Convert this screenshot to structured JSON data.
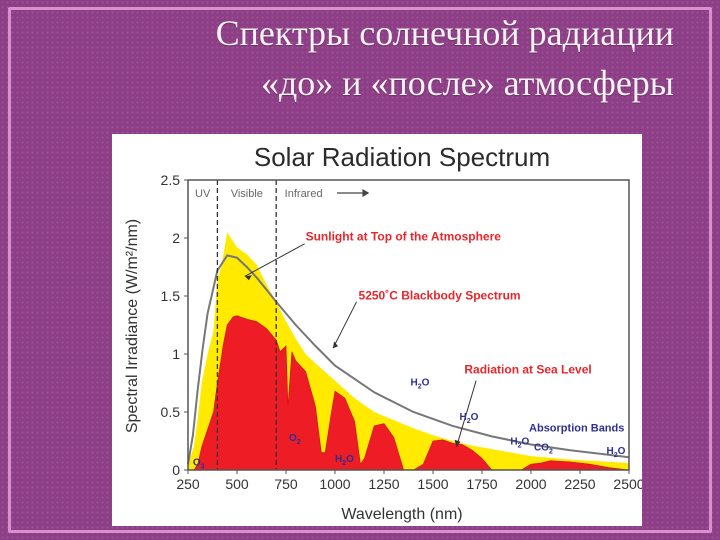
{
  "slide": {
    "title_line1": "Спектры солнечной радиации",
    "title_line2": "«до» и «после» атмосферы"
  },
  "colors": {
    "slide_background": "#8e3e86",
    "frame": "#d98fd0",
    "top_of_atmosphere": "#ffea00",
    "sea_level": "#ee1c25",
    "blackbody": "#777777",
    "annotation_red": "#e8262b",
    "absorption_blue": "#2e3192"
  },
  "chart_data": {
    "type": "area",
    "title": "Solar Radiation Spectrum",
    "xlabel": "Wavelength (nm)",
    "ylabel": "Spectral Irradiance (W/m²/nm)",
    "xlim": [
      250,
      2500
    ],
    "ylim": [
      0,
      2.5
    ],
    "xticks": [
      250,
      500,
      750,
      1000,
      1250,
      1500,
      1750,
      2000,
      2250,
      2500
    ],
    "yticks": [
      0,
      0.5,
      1,
      1.5,
      2,
      2.5
    ],
    "ytick_labels": [
      "0",
      "0.5",
      "1",
      "1.5",
      "2",
      "2.5"
    ],
    "regions": [
      {
        "label": "UV",
        "from": 250,
        "to": 400
      },
      {
        "label": "Visible",
        "from": 400,
        "to": 700
      },
      {
        "label": "Infrared",
        "from": 700,
        "to": 2500
      }
    ],
    "series": [
      {
        "name": "Sunlight at Top of the Atmosphere",
        "x": [
          250,
          280,
          300,
          320,
          350,
          380,
          400,
          420,
          450,
          480,
          500,
          550,
          600,
          650,
          700,
          750,
          800,
          850,
          900,
          1000,
          1100,
          1200,
          1300,
          1400,
          1500,
          1600,
          1700,
          1800,
          2000,
          2200,
          2400,
          2500
        ],
        "y": [
          0.05,
          0.2,
          0.45,
          0.75,
          1.0,
          1.2,
          1.65,
          1.75,
          2.05,
          1.97,
          1.92,
          1.86,
          1.77,
          1.6,
          1.45,
          1.28,
          1.13,
          1.0,
          0.92,
          0.77,
          0.62,
          0.5,
          0.43,
          0.36,
          0.3,
          0.25,
          0.21,
          0.18,
          0.12,
          0.09,
          0.07,
          0.06
        ]
      },
      {
        "name": "5250°C Blackbody Spectrum",
        "x": [
          250,
          275,
          300,
          325,
          350,
          400,
          450,
          500,
          550,
          600,
          700,
          800,
          900,
          1000,
          1200,
          1400,
          1600,
          1800,
          2000,
          2200,
          2400,
          2500
        ],
        "y": [
          0.05,
          0.3,
          0.7,
          1.05,
          1.35,
          1.72,
          1.85,
          1.83,
          1.75,
          1.66,
          1.45,
          1.25,
          1.07,
          0.9,
          0.67,
          0.5,
          0.38,
          0.29,
          0.22,
          0.17,
          0.13,
          0.11
        ]
      },
      {
        "name": "Radiation at Sea Level",
        "x": [
          280,
          300,
          320,
          350,
          380,
          400,
          430,
          450,
          480,
          500,
          550,
          600,
          650,
          700,
          720,
          750,
          760,
          780,
          800,
          850,
          900,
          930,
          950,
          980,
          1000,
          1050,
          1100,
          1130,
          1150,
          1200,
          1250,
          1300,
          1350,
          1400,
          1450,
          1500,
          1550,
          1600,
          1650,
          1700,
          1750,
          1800,
          1850,
          1950,
          2000,
          2050,
          2100,
          2200,
          2300,
          2400,
          2500
        ],
        "y": [
          0,
          0.05,
          0.2,
          0.35,
          0.5,
          0.75,
          1.08,
          1.25,
          1.32,
          1.33,
          1.3,
          1.28,
          1.22,
          1.12,
          1.02,
          1.07,
          0.55,
          1.02,
          0.94,
          0.85,
          0.55,
          0.15,
          0.15,
          0.48,
          0.68,
          0.62,
          0.42,
          0.05,
          0.1,
          0.38,
          0.4,
          0.28,
          0.0,
          0.0,
          0.05,
          0.25,
          0.26,
          0.23,
          0.22,
          0.17,
          0.1,
          0.0,
          0.0,
          0.0,
          0.05,
          0.06,
          0.08,
          0.07,
          0.05,
          0.02,
          0.0
        ]
      }
    ],
    "annotations": [
      {
        "text": "Sunlight at Top of the Atmosphere",
        "color": "red"
      },
      {
        "text": "5250˚C Blackbody Spectrum",
        "color": "red"
      },
      {
        "text": "Radiation at Sea Level",
        "color": "red"
      },
      {
        "text": "Absorption Bands",
        "color": "blue"
      }
    ],
    "absorption_labels": [
      {
        "gas": "O",
        "sub": "3",
        "x": 275
      },
      {
        "gas": "O",
        "sub": "2",
        "x": 770
      },
      {
        "gas": "H",
        "sub": "2",
        "tail": "O",
        "x": 1000
      },
      {
        "gas": "H",
        "sub": "2",
        "tail": "O",
        "x": 1400
      },
      {
        "gas": "H",
        "sub": "2",
        "tail": "O",
        "x": 1700
      },
      {
        "gas": "H",
        "sub": "2",
        "tail": "O",
        "x": 1890
      },
      {
        "gas": "CO",
        "sub": "2",
        "x": 2020
      },
      {
        "gas": "H",
        "sub": "2",
        "tail": "O",
        "x": 2520
      }
    ]
  }
}
